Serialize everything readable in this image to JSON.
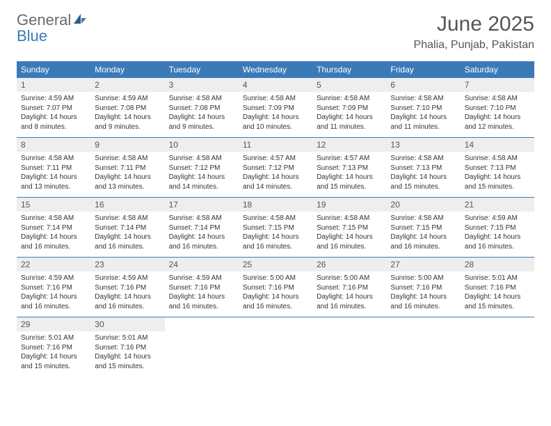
{
  "logo": {
    "general": "General",
    "blue": "Blue"
  },
  "title": "June 2025",
  "location": "Phalia, Punjab, Pakistan",
  "colors": {
    "header_bg": "#3a7ab8",
    "header_text": "#ffffff",
    "daynum_bg": "#eeeeee",
    "text": "#333333",
    "title_text": "#555555",
    "row_border": "#3a7ab8"
  },
  "fonts": {
    "title_size": 30,
    "location_size": 16,
    "day_header_size": 12,
    "daynum_size": 12,
    "body_size": 10
  },
  "day_headers": [
    "Sunday",
    "Monday",
    "Tuesday",
    "Wednesday",
    "Thursday",
    "Friday",
    "Saturday"
  ],
  "weeks": [
    [
      {
        "n": "1",
        "sr": "Sunrise: 4:59 AM",
        "ss": "Sunset: 7:07 PM",
        "dl": "Daylight: 14 hours and 8 minutes."
      },
      {
        "n": "2",
        "sr": "Sunrise: 4:59 AM",
        "ss": "Sunset: 7:08 PM",
        "dl": "Daylight: 14 hours and 9 minutes."
      },
      {
        "n": "3",
        "sr": "Sunrise: 4:58 AM",
        "ss": "Sunset: 7:08 PM",
        "dl": "Daylight: 14 hours and 9 minutes."
      },
      {
        "n": "4",
        "sr": "Sunrise: 4:58 AM",
        "ss": "Sunset: 7:09 PM",
        "dl": "Daylight: 14 hours and 10 minutes."
      },
      {
        "n": "5",
        "sr": "Sunrise: 4:58 AM",
        "ss": "Sunset: 7:09 PM",
        "dl": "Daylight: 14 hours and 11 minutes."
      },
      {
        "n": "6",
        "sr": "Sunrise: 4:58 AM",
        "ss": "Sunset: 7:10 PM",
        "dl": "Daylight: 14 hours and 11 minutes."
      },
      {
        "n": "7",
        "sr": "Sunrise: 4:58 AM",
        "ss": "Sunset: 7:10 PM",
        "dl": "Daylight: 14 hours and 12 minutes."
      }
    ],
    [
      {
        "n": "8",
        "sr": "Sunrise: 4:58 AM",
        "ss": "Sunset: 7:11 PM",
        "dl": "Daylight: 14 hours and 13 minutes."
      },
      {
        "n": "9",
        "sr": "Sunrise: 4:58 AM",
        "ss": "Sunset: 7:11 PM",
        "dl": "Daylight: 14 hours and 13 minutes."
      },
      {
        "n": "10",
        "sr": "Sunrise: 4:58 AM",
        "ss": "Sunset: 7:12 PM",
        "dl": "Daylight: 14 hours and 14 minutes."
      },
      {
        "n": "11",
        "sr": "Sunrise: 4:57 AM",
        "ss": "Sunset: 7:12 PM",
        "dl": "Daylight: 14 hours and 14 minutes."
      },
      {
        "n": "12",
        "sr": "Sunrise: 4:57 AM",
        "ss": "Sunset: 7:13 PM",
        "dl": "Daylight: 14 hours and 15 minutes."
      },
      {
        "n": "13",
        "sr": "Sunrise: 4:58 AM",
        "ss": "Sunset: 7:13 PM",
        "dl": "Daylight: 14 hours and 15 minutes."
      },
      {
        "n": "14",
        "sr": "Sunrise: 4:58 AM",
        "ss": "Sunset: 7:13 PM",
        "dl": "Daylight: 14 hours and 15 minutes."
      }
    ],
    [
      {
        "n": "15",
        "sr": "Sunrise: 4:58 AM",
        "ss": "Sunset: 7:14 PM",
        "dl": "Daylight: 14 hours and 16 minutes."
      },
      {
        "n": "16",
        "sr": "Sunrise: 4:58 AM",
        "ss": "Sunset: 7:14 PM",
        "dl": "Daylight: 14 hours and 16 minutes."
      },
      {
        "n": "17",
        "sr": "Sunrise: 4:58 AM",
        "ss": "Sunset: 7:14 PM",
        "dl": "Daylight: 14 hours and 16 minutes."
      },
      {
        "n": "18",
        "sr": "Sunrise: 4:58 AM",
        "ss": "Sunset: 7:15 PM",
        "dl": "Daylight: 14 hours and 16 minutes."
      },
      {
        "n": "19",
        "sr": "Sunrise: 4:58 AM",
        "ss": "Sunset: 7:15 PM",
        "dl": "Daylight: 14 hours and 16 minutes."
      },
      {
        "n": "20",
        "sr": "Sunrise: 4:58 AM",
        "ss": "Sunset: 7:15 PM",
        "dl": "Daylight: 14 hours and 16 minutes."
      },
      {
        "n": "21",
        "sr": "Sunrise: 4:59 AM",
        "ss": "Sunset: 7:15 PM",
        "dl": "Daylight: 14 hours and 16 minutes."
      }
    ],
    [
      {
        "n": "22",
        "sr": "Sunrise: 4:59 AM",
        "ss": "Sunset: 7:16 PM",
        "dl": "Daylight: 14 hours and 16 minutes."
      },
      {
        "n": "23",
        "sr": "Sunrise: 4:59 AM",
        "ss": "Sunset: 7:16 PM",
        "dl": "Daylight: 14 hours and 16 minutes."
      },
      {
        "n": "24",
        "sr": "Sunrise: 4:59 AM",
        "ss": "Sunset: 7:16 PM",
        "dl": "Daylight: 14 hours and 16 minutes."
      },
      {
        "n": "25",
        "sr": "Sunrise: 5:00 AM",
        "ss": "Sunset: 7:16 PM",
        "dl": "Daylight: 14 hours and 16 minutes."
      },
      {
        "n": "26",
        "sr": "Sunrise: 5:00 AM",
        "ss": "Sunset: 7:16 PM",
        "dl": "Daylight: 14 hours and 16 minutes."
      },
      {
        "n": "27",
        "sr": "Sunrise: 5:00 AM",
        "ss": "Sunset: 7:16 PM",
        "dl": "Daylight: 14 hours and 16 minutes."
      },
      {
        "n": "28",
        "sr": "Sunrise: 5:01 AM",
        "ss": "Sunset: 7:16 PM",
        "dl": "Daylight: 14 hours and 15 minutes."
      }
    ],
    [
      {
        "n": "29",
        "sr": "Sunrise: 5:01 AM",
        "ss": "Sunset: 7:16 PM",
        "dl": "Daylight: 14 hours and 15 minutes."
      },
      {
        "n": "30",
        "sr": "Sunrise: 5:01 AM",
        "ss": "Sunset: 7:16 PM",
        "dl": "Daylight: 14 hours and 15 minutes."
      },
      {
        "empty": true
      },
      {
        "empty": true
      },
      {
        "empty": true
      },
      {
        "empty": true
      },
      {
        "empty": true
      }
    ]
  ]
}
